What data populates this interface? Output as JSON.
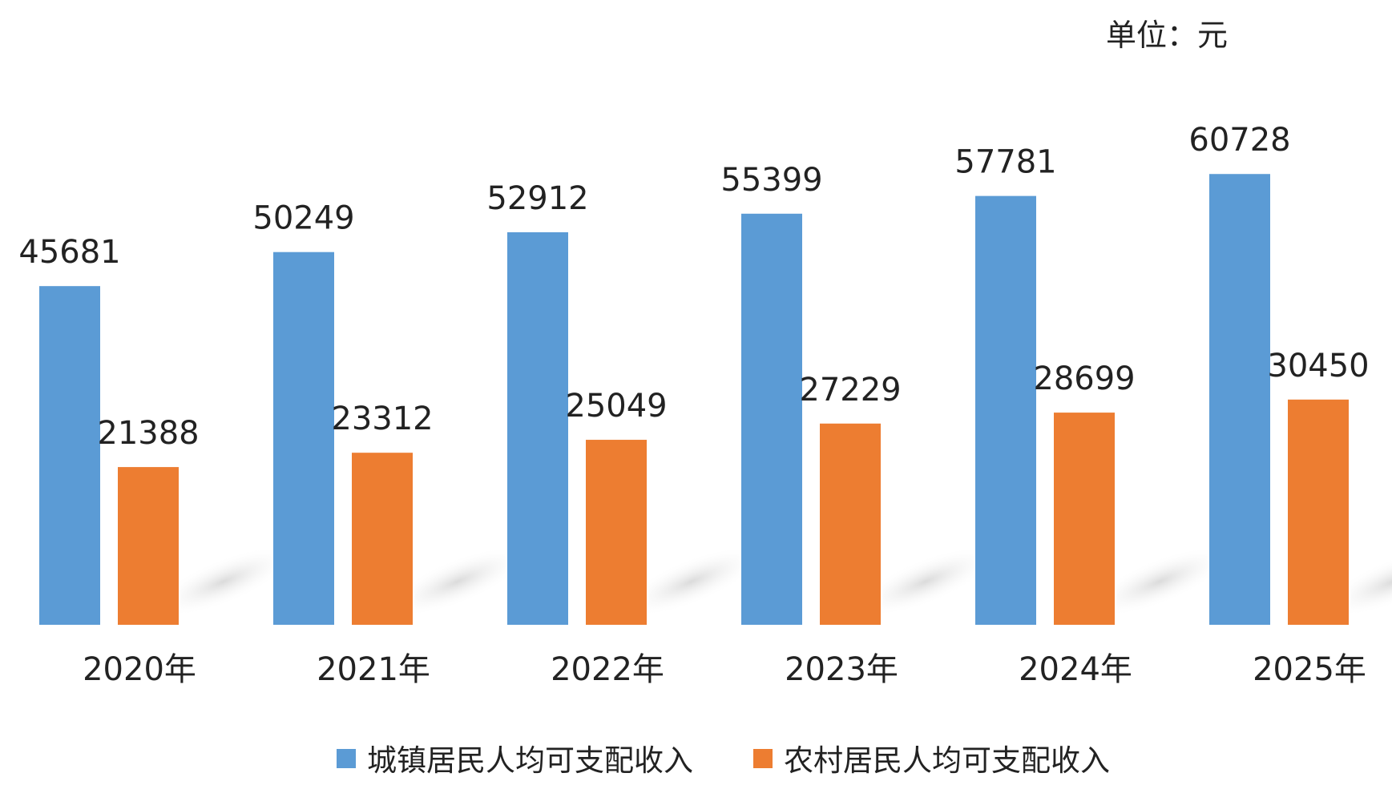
{
  "chart_data": {
    "type": "bar",
    "unit_label": "单位：元",
    "categories": [
      "2020年",
      "2021年",
      "2022年",
      "2023年",
      "2024年",
      "2025年"
    ],
    "series": [
      {
        "name": "城镇居民人均可支配收入",
        "color": "#5b9bd5",
        "values": [
          45681,
          50249,
          52912,
          55399,
          57781,
          60728
        ]
      },
      {
        "name": "农村居民人均可支配收入",
        "color": "#ed7d31",
        "values": [
          21388,
          23312,
          25049,
          27229,
          28699,
          30450
        ]
      }
    ],
    "grid": false,
    "legend_position": "bottom",
    "data_labels": true,
    "ylim": [
      0,
      60728
    ]
  }
}
